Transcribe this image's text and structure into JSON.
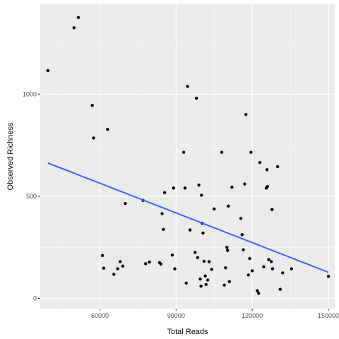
{
  "chart_data": {
    "type": "scatter",
    "xlabel": "Total Reads",
    "ylabel": "Observed Richness",
    "xlim": [
      36500,
      152500
    ],
    "ylim": [
      -50,
      1440
    ],
    "x_ticks": [
      60000,
      90000,
      120000,
      150000
    ],
    "x_tick_labels": [
      "60000",
      "90000",
      "120000",
      "150000"
    ],
    "y_ticks": [
      0,
      500,
      1000
    ],
    "y_tick_labels": [
      "0",
      "500",
      "1000"
    ],
    "grid": true,
    "panel_color": "#ebebeb",
    "grid_color": "#ffffff",
    "point_color": "#000000",
    "trend_color": "#3366ff",
    "trend_line": {
      "x": [
        39500,
        150000
      ],
      "y": [
        663,
        128
      ]
    },
    "points": [
      {
        "x": 39500,
        "y": 1115
      },
      {
        "x": 49800,
        "y": 1325
      },
      {
        "x": 51500,
        "y": 1375
      },
      {
        "x": 57000,
        "y": 945
      },
      {
        "x": 57500,
        "y": 785
      },
      {
        "x": 61000,
        "y": 210
      },
      {
        "x": 61500,
        "y": 148
      },
      {
        "x": 63000,
        "y": 828
      },
      {
        "x": 65500,
        "y": 118
      },
      {
        "x": 67000,
        "y": 145
      },
      {
        "x": 68000,
        "y": 180
      },
      {
        "x": 69000,
        "y": 158
      },
      {
        "x": 70000,
        "y": 465
      },
      {
        "x": 77000,
        "y": 480
      },
      {
        "x": 78000,
        "y": 170
      },
      {
        "x": 79500,
        "y": 178
      },
      {
        "x": 83500,
        "y": 175
      },
      {
        "x": 84000,
        "y": 168
      },
      {
        "x": 84500,
        "y": 415
      },
      {
        "x": 85000,
        "y": 338
      },
      {
        "x": 85500,
        "y": 518
      },
      {
        "x": 88500,
        "y": 212
      },
      {
        "x": 89000,
        "y": 540
      },
      {
        "x": 89500,
        "y": 145
      },
      {
        "x": 93000,
        "y": 715
      },
      {
        "x": 93500,
        "y": 540
      },
      {
        "x": 94000,
        "y": 75
      },
      {
        "x": 94500,
        "y": 1038
      },
      {
        "x": 95500,
        "y": 335
      },
      {
        "x": 97500,
        "y": 225
      },
      {
        "x": 98000,
        "y": 980
      },
      {
        "x": 98500,
        "y": 200
      },
      {
        "x": 99000,
        "y": 555
      },
      {
        "x": 99500,
        "y": 95
      },
      {
        "x": 99800,
        "y": 60
      },
      {
        "x": 100000,
        "y": 505
      },
      {
        "x": 100300,
        "y": 368
      },
      {
        "x": 100600,
        "y": 320
      },
      {
        "x": 101000,
        "y": 182
      },
      {
        "x": 101500,
        "y": 110
      },
      {
        "x": 101800,
        "y": 68
      },
      {
        "x": 102500,
        "y": 90
      },
      {
        "x": 103000,
        "y": 180
      },
      {
        "x": 104000,
        "y": 142
      },
      {
        "x": 105000,
        "y": 438
      },
      {
        "x": 108000,
        "y": 715
      },
      {
        "x": 109000,
        "y": 65
      },
      {
        "x": 109500,
        "y": 150
      },
      {
        "x": 110000,
        "y": 250
      },
      {
        "x": 110300,
        "y": 235
      },
      {
        "x": 110600,
        "y": 452
      },
      {
        "x": 111000,
        "y": 82
      },
      {
        "x": 112000,
        "y": 545
      },
      {
        "x": 115500,
        "y": 392
      },
      {
        "x": 116000,
        "y": 312
      },
      {
        "x": 116500,
        "y": 238
      },
      {
        "x": 117000,
        "y": 560
      },
      {
        "x": 117500,
        "y": 900
      },
      {
        "x": 118500,
        "y": 115
      },
      {
        "x": 119000,
        "y": 195
      },
      {
        "x": 119500,
        "y": 715
      },
      {
        "x": 120000,
        "y": 135
      },
      {
        "x": 122000,
        "y": 38
      },
      {
        "x": 122500,
        "y": 25
      },
      {
        "x": 123000,
        "y": 665
      },
      {
        "x": 124500,
        "y": 155
      },
      {
        "x": 125500,
        "y": 540
      },
      {
        "x": 125800,
        "y": 630
      },
      {
        "x": 126000,
        "y": 548
      },
      {
        "x": 126500,
        "y": 190
      },
      {
        "x": 127500,
        "y": 180
      },
      {
        "x": 127800,
        "y": 435
      },
      {
        "x": 128000,
        "y": 145
      },
      {
        "x": 130000,
        "y": 645
      },
      {
        "x": 131000,
        "y": 45
      },
      {
        "x": 132000,
        "y": 125
      },
      {
        "x": 135500,
        "y": 145
      },
      {
        "x": 150000,
        "y": 108
      }
    ]
  }
}
